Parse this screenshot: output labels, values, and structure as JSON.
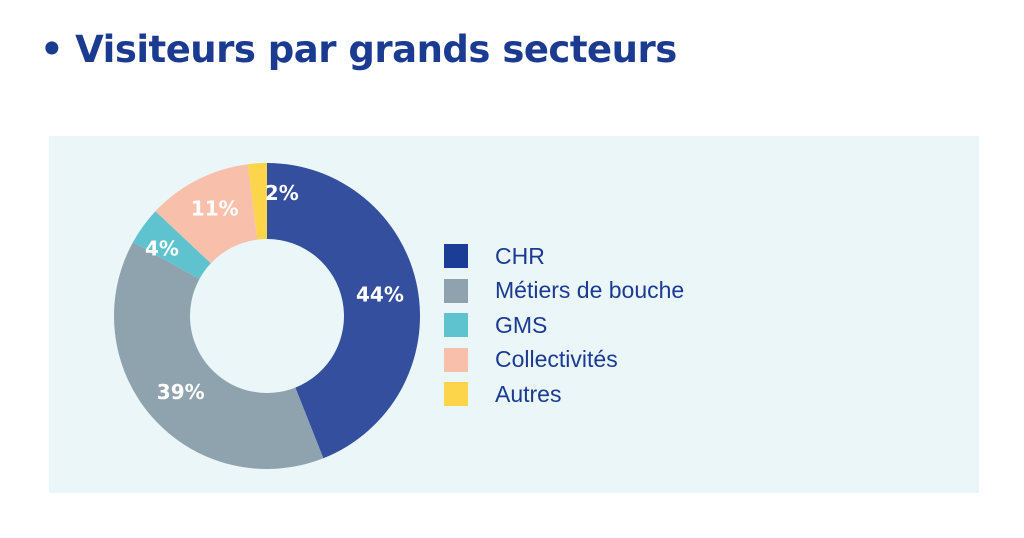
{
  "title": "Visiteurs par grands secteurs",
  "chart_data": {
    "type": "pie",
    "variant": "donut",
    "title": "Visiteurs par grands secteurs",
    "categories": [
      "CHR",
      "Métiers de bouche",
      "GMS",
      "Collectivités",
      "Autres"
    ],
    "values": [
      44,
      39,
      4,
      11,
      2
    ],
    "labels": [
      "44%",
      "39%",
      "4%",
      "11%",
      "2%"
    ],
    "colors": [
      "#334f9e",
      "#8fa3ae",
      "#5fc3cf",
      "#f8c0ab",
      "#fdd54a"
    ],
    "legend_colors": [
      "#1a3d96",
      "#8fa3ae",
      "#5fc3cf",
      "#f8c0ab",
      "#fdd54a"
    ],
    "start": "12 o'clock, clockwise",
    "legend_position": "right"
  }
}
